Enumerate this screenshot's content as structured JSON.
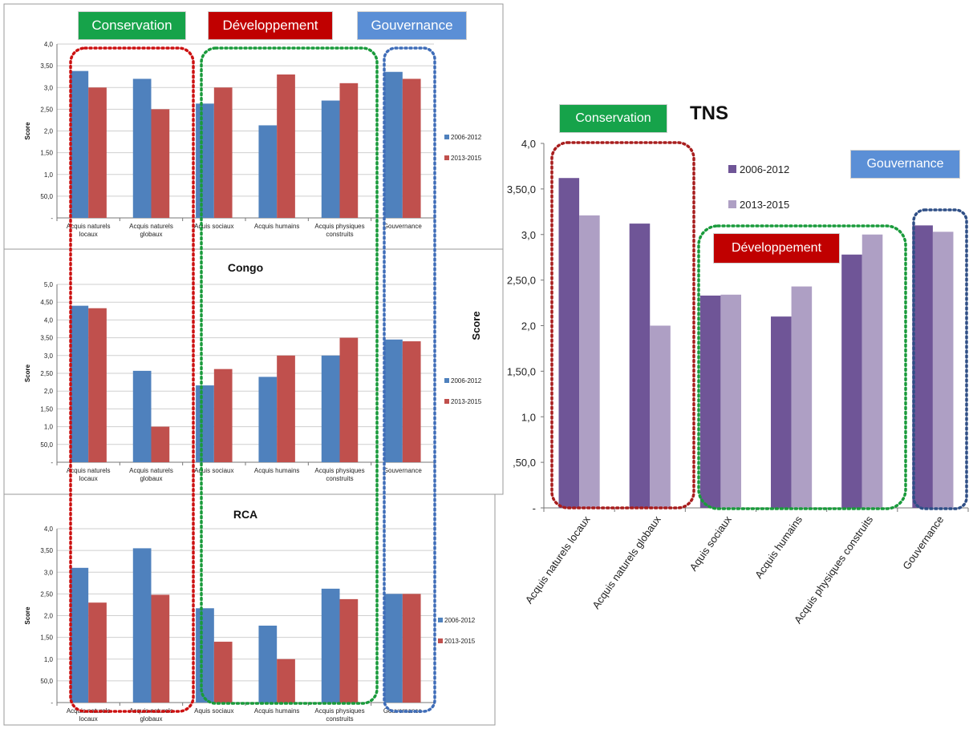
{
  "left_badges": {
    "conservation": "Conservation",
    "developpement": "Développement",
    "gouvernance": "Gouvernance"
  },
  "right_badges": {
    "conservation": "Conservation",
    "developpement": "Développement",
    "gouvernance": "Gouvernance"
  },
  "colors": {
    "left_series_1": "#4f81bd",
    "left_series_2": "#c0504d",
    "right_series_1": "#6f5597",
    "right_series_2": "#ae9fc4",
    "dotted_red": "#cc1111",
    "dotted_green": "#1a9b3c",
    "dotted_blue": "#3f6db8",
    "dotted_darkred": "#a81e1e",
    "dotted_darkblue": "#2f4f86"
  },
  "chart_data": [
    {
      "type": "bar",
      "title": "",
      "ylabel": "Score",
      "categories": [
        "Acquis naturels locaux",
        "Acquis naturels globaux",
        "Aquis sociaux",
        "Acquis humains",
        "Acquis physiques construits",
        "Gouvernance"
      ],
      "series": [
        {
          "name": "2006-2012",
          "values": [
            3.38,
            3.2,
            2.63,
            2.13,
            2.7,
            3.36
          ]
        },
        {
          "name": "2013-2015",
          "values": [
            3.0,
            2.5,
            3.0,
            3.3,
            3.1,
            3.2
          ]
        }
      ],
      "ylim": [
        0,
        4
      ],
      "yticks": [
        "-",
        "50,0",
        "1,0",
        "1,50",
        "2,0",
        "2,50",
        "3,0",
        "3,50",
        "4,0"
      ],
      "legend": "right"
    },
    {
      "type": "bar",
      "title": "Congo",
      "ylabel": "Score",
      "categories": [
        "Acquis naturels locaux",
        "Acquis naturels globaux",
        "Aquis sociaux",
        "Acquis humains",
        "Acquis physiques construits",
        "Gouvernance"
      ],
      "series": [
        {
          "name": "2006-2012",
          "values": [
            4.4,
            2.57,
            2.16,
            2.4,
            3.0,
            3.45
          ]
        },
        {
          "name": "2013-2015",
          "values": [
            4.33,
            1.0,
            2.62,
            3.0,
            3.5,
            3.4
          ]
        }
      ],
      "ylim": [
        0,
        5
      ],
      "yticks": [
        "-",
        "50,0",
        "1,0",
        "1,50",
        "2,0",
        "2,50",
        "3,0",
        "3,50",
        "4,0",
        "4,50",
        "5,0"
      ],
      "legend": "right"
    },
    {
      "type": "bar",
      "title": "RCA",
      "ylabel": "Score",
      "categories": [
        "Acquis naturels locaux",
        "Acquis naturels globaux",
        "Aquis sociaux",
        "Acquis humains",
        "Acquis physiques construits",
        "Gouvernance"
      ],
      "series": [
        {
          "name": "2006-2012",
          "values": [
            3.1,
            3.55,
            2.17,
            1.77,
            2.62,
            2.5
          ]
        },
        {
          "name": "2013-2015",
          "values": [
            2.3,
            2.48,
            1.4,
            1.0,
            2.38,
            2.5
          ]
        }
      ],
      "ylim": [
        0,
        4
      ],
      "yticks": [
        "-",
        "50,0",
        "1,0",
        "1,50",
        "2,0",
        "2,50",
        "3,0",
        "3,50",
        "4,0"
      ],
      "legend": "right"
    },
    {
      "type": "bar",
      "title": "TNS",
      "ylabel": "Score",
      "categories": [
        "Acquis naturels locaux",
        "Acquis naturels globaux",
        "Aquis sociaux",
        "Acquis humains",
        "Acquis physiques construits",
        "Gouvernance"
      ],
      "series": [
        {
          "name": "2006-2012",
          "values": [
            3.62,
            3.12,
            2.33,
            2.1,
            2.78,
            3.1
          ]
        },
        {
          "name": "2013-2015",
          "values": [
            3.21,
            2.0,
            2.34,
            2.43,
            3.0,
            3.03
          ]
        }
      ],
      "ylim": [
        0,
        4
      ],
      "yticks": [
        "-",
        ",50,0",
        "1,0",
        "1,50,0",
        "2,0",
        "2,50,0",
        "3,0",
        "3,50,0",
        "4,0"
      ],
      "legend": "top-center"
    }
  ]
}
